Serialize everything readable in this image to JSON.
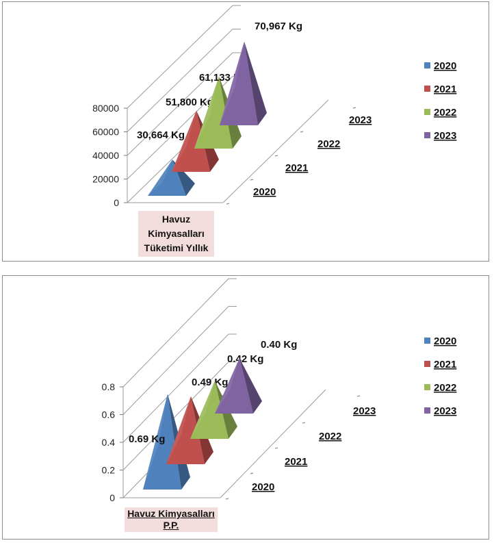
{
  "chart_data": [
    {
      "type": "3d-pyramid",
      "category": "Havuz Kimyasalları Tüketimi Yıllık",
      "series": [
        {
          "name": "2020",
          "value": 30664,
          "label": "30,664  Kg",
          "color": "#4f81bd"
        },
        {
          "name": "2021",
          "value": 51800,
          "label": "51,800  Kg",
          "color": "#c0504d"
        },
        {
          "name": "2022",
          "value": 61133,
          "label": "61,133  Kg",
          "color": "#9bbb59"
        },
        {
          "name": "2023",
          "value": 70967,
          "label": "70,967 Kg",
          "color": "#8064a2"
        }
      ],
      "yticks": [
        "0",
        "20000",
        "40000",
        "60000",
        "80000"
      ],
      "ylim": [
        0,
        80000
      ],
      "depth_labels": [
        "2020",
        "2021",
        "2022",
        "2023"
      ],
      "legend": [
        "2020",
        "2021",
        "2022",
        "2023"
      ]
    },
    {
      "type": "3d-pyramid",
      "category": "Havuz Kimyasalları P.P.",
      "series": [
        {
          "name": "2020",
          "value": 0.69,
          "label": "0.69 Kg",
          "color": "#4f81bd"
        },
        {
          "name": "2021",
          "value": 0.49,
          "label": "0.49 Kg",
          "color": "#c0504d"
        },
        {
          "name": "2022",
          "value": 0.42,
          "label": "0.42 Kg",
          "color": "#9bbb59"
        },
        {
          "name": "2023",
          "value": 0.4,
          "label": "0.40 Kg",
          "color": "#8064a2"
        }
      ],
      "yticks": [
        "0",
        "0.2",
        "0.4",
        "0.6",
        "0.8"
      ],
      "ylim": [
        0,
        0.8
      ],
      "depth_labels": [
        "2020",
        "2021",
        "2022",
        "2023"
      ],
      "legend": [
        "2020",
        "2021",
        "2022",
        "2023"
      ]
    }
  ],
  "category_label_1": {
    "line1": "Havuz",
    "line2": "Kimyasalları",
    "line3": "Tüketimi Yıllık"
  },
  "category_label_2": {
    "line1": "Havuz Kimyasalları",
    "line2": "P.P."
  }
}
